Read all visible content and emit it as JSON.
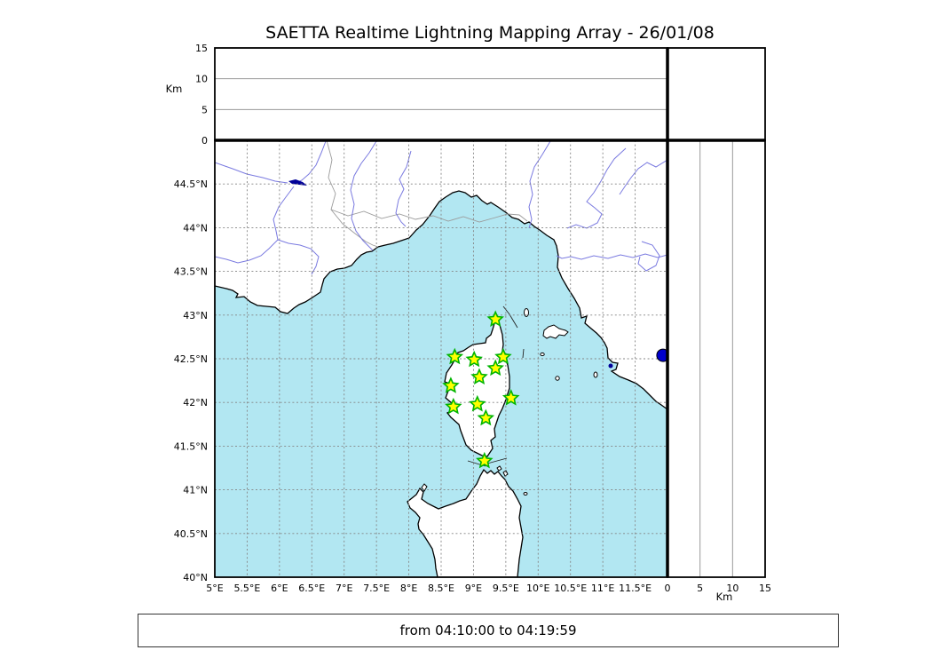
{
  "title": "SAETTA Realtime Lightning Mapping Array - 26/01/08",
  "footer": "from 04:10:00 to 04:19:59",
  "map": {
    "lon_min": 5,
    "lon_max": 12,
    "lat_min": 40,
    "lat_max": 45,
    "lon_ticks": [
      {
        "value": 5,
        "label": "5°E"
      },
      {
        "value": 5.5,
        "label": "5.5°E"
      },
      {
        "value": 6,
        "label": "6°E"
      },
      {
        "value": 6.5,
        "label": "6.5°E"
      },
      {
        "value": 7,
        "label": "7°E"
      },
      {
        "value": 7.5,
        "label": "7.5°E"
      },
      {
        "value": 8,
        "label": "8°E"
      },
      {
        "value": 8.5,
        "label": "8.5°E"
      },
      {
        "value": 9,
        "label": "9°E"
      },
      {
        "value": 9.5,
        "label": "9.5°E"
      },
      {
        "value": 10,
        "label": "10°E"
      },
      {
        "value": 10.5,
        "label": "10.5°E"
      },
      {
        "value": 11,
        "label": "11°E"
      },
      {
        "value": 11.5,
        "label": "11.5°E"
      }
    ],
    "lat_ticks": [
      {
        "value": 44.5,
        "label": "44.5°N"
      },
      {
        "value": 44,
        "label": "44°N"
      },
      {
        "value": 43.5,
        "label": "43.5°N"
      },
      {
        "value": 43,
        "label": "43°N"
      },
      {
        "value": 42.5,
        "label": "42.5°N"
      },
      {
        "value": 42,
        "label": "42°N"
      },
      {
        "value": 41.5,
        "label": "41.5°N"
      },
      {
        "value": 41,
        "label": "41°N"
      },
      {
        "value": 40.5,
        "label": "40.5°N"
      },
      {
        "value": 40,
        "label": "40°N"
      }
    ]
  },
  "altitude_axis": {
    "min": 0,
    "max": 15,
    "unit": "Km",
    "ticks": [
      {
        "value": 0,
        "label": "0"
      },
      {
        "value": 5,
        "label": "5"
      },
      {
        "value": 10,
        "label": "10"
      },
      {
        "value": 15,
        "label": "15"
      }
    ],
    "gridlines": [
      5,
      10
    ]
  },
  "stations": [
    {
      "lon": 9.34,
      "lat": 42.95
    },
    {
      "lon": 8.71,
      "lat": 42.52
    },
    {
      "lon": 9.01,
      "lat": 42.49
    },
    {
      "lon": 9.46,
      "lat": 42.52
    },
    {
      "lon": 9.34,
      "lat": 42.39
    },
    {
      "lon": 9.09,
      "lat": 42.29
    },
    {
      "lon": 8.65,
      "lat": 42.19
    },
    {
      "lon": 9.58,
      "lat": 42.05
    },
    {
      "lon": 9.06,
      "lat": 41.98
    },
    {
      "lon": 8.69,
      "lat": 41.95
    },
    {
      "lon": 9.19,
      "lat": 41.82
    },
    {
      "lon": 9.17,
      "lat": 41.33
    }
  ],
  "events": [
    {
      "lon": 11.93,
      "lat": 42.54
    }
  ],
  "colors": {
    "sea": "#b2e7f2",
    "land": "#ffffff",
    "coast": "#000000",
    "river": "#7a7ae0",
    "country_border": "#9b9b9b",
    "grid": "#848484",
    "panel_grid": "#999999",
    "star_fill": "#ffff00",
    "star_edge": "#00b400",
    "event_fill": "#0000cc",
    "lake": "#000099"
  }
}
